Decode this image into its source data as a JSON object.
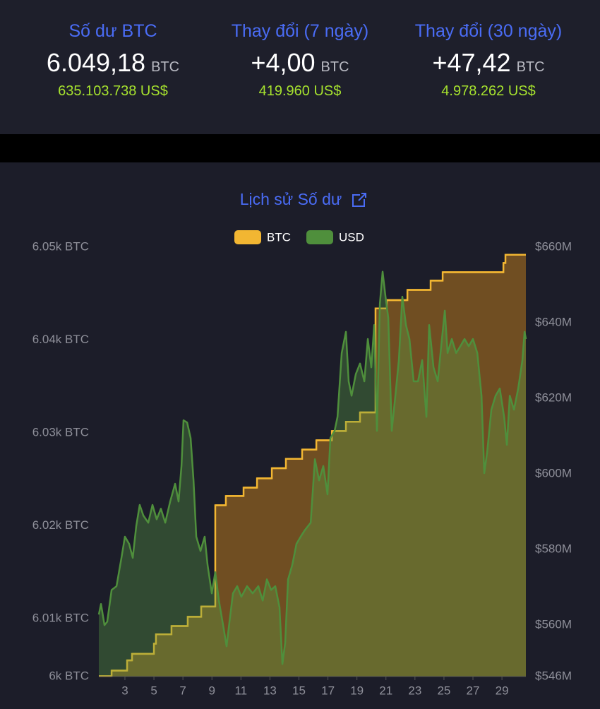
{
  "stats": [
    {
      "label": "Số dư BTC",
      "value": "6.049,18",
      "unit": "BTC",
      "usd": "635.103.738 US$"
    },
    {
      "label": "Thay đổi (7 ngày)",
      "value": "+4,00",
      "unit": "BTC",
      "usd": "419.960 US$"
    },
    {
      "label": "Thay đổi (30 ngày)",
      "value": "+47,42",
      "unit": "BTC",
      "usd": "4.978.262 US$"
    }
  ],
  "chart_data": {
    "type": "line",
    "title": "Lịch sử Số dư",
    "xlim": [
      1.2,
      30.65
    ],
    "xticks": [
      3,
      5,
      7,
      9,
      11,
      13,
      15,
      17,
      19,
      21,
      23,
      25,
      27,
      29
    ],
    "ylim": [
      6003.76,
      6050
    ],
    "yticks": [
      {
        "value": 6003.76,
        "label": "6k BTC"
      },
      {
        "value": 6010,
        "label": "6.01k BTC"
      },
      {
        "value": 6020,
        "label": "6.02k BTC"
      },
      {
        "value": 6030,
        "label": "6.03k BTC"
      },
      {
        "value": 6040,
        "label": "6.04k BTC"
      },
      {
        "value": 6050,
        "label": "6.05k BTC"
      }
    ],
    "y2lim": [
      546.4,
      660
    ],
    "y2ticks": [
      {
        "value": 546.4,
        "label": "$546M"
      },
      {
        "value": 560,
        "label": "$560M"
      },
      {
        "value": 580,
        "label": "$580M"
      },
      {
        "value": 600,
        "label": "$600M"
      },
      {
        "value": 620,
        "label": "$620M"
      },
      {
        "value": 640,
        "label": "$640M"
      },
      {
        "value": 660,
        "label": "$660M"
      }
    ],
    "grid": false,
    "series": [
      {
        "name": "BTC",
        "color": "#f2b632",
        "step": true,
        "x": [
          1.2,
          2.08,
          3.15,
          3.49,
          5.0,
          5.14,
          6.21,
          7.33,
          8.26,
          9.23,
          9.96,
          11.18,
          12.11,
          13.13,
          14.1,
          15.22,
          16.2,
          17.27,
          18.24,
          19.21,
          20.28,
          21.06,
          22.48,
          24.08,
          24.91,
          29.1,
          29.24
        ],
        "values": [
          6003.8,
          6004.4,
          6005.5,
          6006.2,
          6007.3,
          6008.3,
          6009.2,
          6010.2,
          6011.3,
          6022.2,
          6023.2,
          6024.1,
          6025.1,
          6026.2,
          6027.2,
          6028.2,
          6029.2,
          6030.2,
          6031.2,
          6032.2,
          6043.4,
          6044.3,
          6045.4,
          6046.4,
          6047.3,
          6048.3,
          6049.18
        ]
      },
      {
        "name": "USD",
        "color": "#4f8f3c",
        "axis": "y2",
        "x": [
          1.2,
          1.35,
          1.59,
          1.78,
          2.08,
          2.42,
          2.76,
          3.0,
          3.29,
          3.54,
          3.78,
          4.02,
          4.27,
          4.61,
          4.9,
          5.19,
          5.48,
          5.78,
          6.12,
          6.46,
          6.7,
          6.9,
          7.04,
          7.29,
          7.53,
          7.73,
          7.92,
          8.21,
          8.5,
          8.7,
          8.99,
          9.23,
          9.48,
          9.77,
          10.01,
          10.21,
          10.45,
          10.74,
          11.03,
          11.42,
          11.81,
          12.2,
          12.5,
          12.79,
          13.08,
          13.37,
          13.66,
          13.86,
          14.05,
          14.25,
          14.54,
          14.83,
          15.12,
          15.42,
          15.81,
          16.1,
          16.39,
          16.68,
          16.97,
          17.17,
          17.46,
          17.66,
          17.95,
          18.24,
          18.43,
          18.63,
          18.92,
          19.21,
          19.51,
          19.75,
          19.99,
          20.19,
          20.38,
          20.58,
          20.77,
          20.97,
          21.16,
          21.4,
          21.65,
          21.89,
          22.13,
          22.38,
          22.62,
          22.91,
          23.21,
          23.5,
          23.79,
          23.98,
          24.28,
          24.57,
          24.86,
          25.06,
          25.25,
          25.54,
          25.84,
          26.13,
          26.42,
          26.71,
          27.0,
          27.3,
          27.59,
          27.78,
          27.98,
          28.27,
          28.56,
          28.85,
          29.15,
          29.34,
          29.54,
          29.83,
          30.12,
          30.41,
          30.56,
          30.65
        ],
        "values": [
          562.8,
          565.6,
          560,
          560.9,
          569.3,
          570.3,
          577.8,
          583.4,
          581.5,
          577.8,
          586.2,
          591.8,
          589,
          587.1,
          591.8,
          588,
          590.8,
          587.1,
          592.7,
          597.4,
          592.7,
          602.1,
          614.2,
          613.6,
          609.5,
          598.3,
          583.4,
          579.6,
          583.4,
          575.9,
          568.4,
          574,
          566.5,
          560,
          554.4,
          560.9,
          568.4,
          570.3,
          567.5,
          570.3,
          568.4,
          570.3,
          566.5,
          572.1,
          569.3,
          570.3,
          564.7,
          549.7,
          555.3,
          572.1,
          575.9,
          581.5,
          583.4,
          585.2,
          587.1,
          603.9,
          598.3,
          602.1,
          594.6,
          609.5,
          611.4,
          615.1,
          632,
          637.6,
          624.5,
          620.7,
          626.4,
          629.2,
          624.5,
          635.7,
          628.2,
          639.4,
          611.4,
          645,
          653.5,
          646.9,
          641.3,
          611.4,
          620.7,
          630.1,
          646.9,
          639.4,
          635.7,
          624.5,
          624.5,
          630.1,
          615.1,
          639.4,
          628.2,
          624.5,
          635.7,
          643.2,
          632,
          635.7,
          632,
          633.8,
          635.7,
          633.8,
          635.7,
          632,
          620.7,
          600.2,
          605.8,
          617,
          620.7,
          622.6,
          615.1,
          607.7,
          620.7,
          617,
          622.6,
          630.1,
          637.6,
          635.7
        ]
      }
    ]
  }
}
